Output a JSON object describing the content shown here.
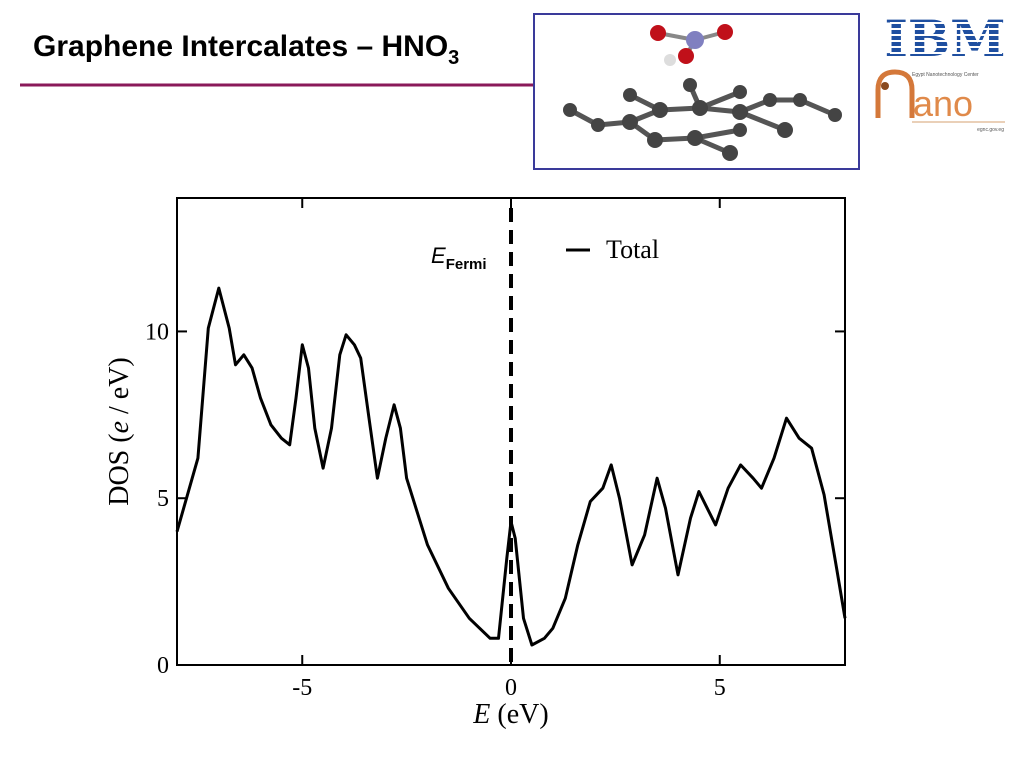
{
  "header": {
    "title": "Graphene Intercalates – HNO",
    "title_sub": "3"
  },
  "logos": {
    "ibm": "IBM",
    "nano": "ano",
    "center": "Egypt Nanotechnology Center",
    "site": "egnc.gov.eg"
  },
  "chart_data": {
    "type": "line",
    "x_label": [
      "E",
      " (eV)"
    ],
    "y_label": [
      "DOS (",
      "e",
      " / eV)"
    ],
    "annotation": {
      "text": "E",
      "sub": "Fermi",
      "x": 0
    },
    "x": [
      -8.0,
      -7.5,
      -7.25,
      -7.0,
      -6.75,
      -6.6,
      -6.4,
      -6.2,
      -6.0,
      -5.75,
      -5.5,
      -5.3,
      -5.15,
      -5.0,
      -4.85,
      -4.7,
      -4.5,
      -4.3,
      -4.1,
      -3.95,
      -3.75,
      -3.6,
      -3.4,
      -3.2,
      -3.0,
      -2.8,
      -2.65,
      -2.5,
      -2.2,
      -2.0,
      -1.5,
      -1.0,
      -0.5,
      -0.3,
      -0.1,
      0.0,
      0.1,
      0.3,
      0.5,
      0.8,
      1.0,
      1.3,
      1.6,
      1.9,
      2.2,
      2.4,
      2.6,
      2.9,
      3.2,
      3.5,
      3.7,
      4.0,
      4.3,
      4.5,
      4.7,
      4.9,
      5.2,
      5.5,
      5.8,
      6.0,
      6.3,
      6.6,
      6.9,
      7.2,
      7.5,
      7.8,
      8.0
    ],
    "series": [
      {
        "name": "Total",
        "color": "#000000",
        "values": [
          4.0,
          6.2,
          10.1,
          11.3,
          10.1,
          9.0,
          9.3,
          8.9,
          8.0,
          7.2,
          6.8,
          6.6,
          8.0,
          9.6,
          8.9,
          7.1,
          5.9,
          7.1,
          9.3,
          9.9,
          9.6,
          9.2,
          7.4,
          5.6,
          6.8,
          7.8,
          7.1,
          5.6,
          4.4,
          3.6,
          2.3,
          1.4,
          0.8,
          0.8,
          3.2,
          4.3,
          3.8,
          1.4,
          0.6,
          0.8,
          1.1,
          2.0,
          3.6,
          4.9,
          5.3,
          6.0,
          5.0,
          3.0,
          3.9,
          5.6,
          4.7,
          2.7,
          4.4,
          5.2,
          4.7,
          4.2,
          5.3,
          6.0,
          5.6,
          5.3,
          6.2,
          7.4,
          6.8,
          6.5,
          5.1,
          2.9,
          1.4
        ]
      }
    ],
    "xlim": [
      -8,
      8
    ],
    "ylim": [
      0,
      14
    ],
    "xticks": [
      -5,
      0,
      5
    ],
    "yticks": [
      0,
      5,
      10
    ]
  }
}
